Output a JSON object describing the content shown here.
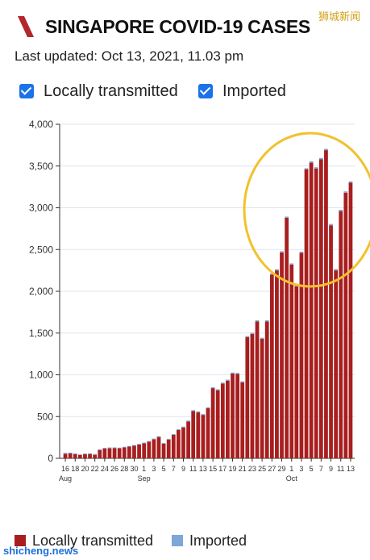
{
  "header": {
    "title": "SINGAPORE COVID-19 CASES",
    "watermark": "狮城新闻"
  },
  "updated_text": "Last updated: Oct 13, 2021, 11.03 pm",
  "filters": [
    {
      "label": "Locally transmitted",
      "checked": true
    },
    {
      "label": "Imported",
      "checked": true
    }
  ],
  "legend": [
    {
      "label": "Locally transmitted",
      "color": "#a81e1e"
    },
    {
      "label": "Imported",
      "color": "#7ea6d8"
    }
  ],
  "footer_watermark": "shicheng.news",
  "colors": {
    "local": "#a81e1e",
    "imported": "#7ea6d8",
    "highlight_circle": "#f2c12e",
    "logo": "#b3262d"
  },
  "chart_data": {
    "type": "bar",
    "stacked": true,
    "ylim": [
      0,
      4000
    ],
    "yticks": [
      0,
      500,
      1000,
      1500,
      2000,
      2500,
      3000,
      3500,
      4000
    ],
    "ytick_labels": [
      "0",
      "500",
      "1,000",
      "1,500",
      "2,000",
      "2,500",
      "3,000",
      "3,500",
      "4,000"
    ],
    "x_tick_labels": [
      "16",
      "18",
      "20",
      "22",
      "24",
      "26",
      "28",
      "30",
      "1",
      "3",
      "5",
      "7",
      "9",
      "11",
      "13",
      "15",
      "17",
      "19",
      "21",
      "23",
      "25",
      "27",
      "29",
      "1",
      "3",
      "5",
      "7",
      "9",
      "11",
      "13"
    ],
    "month_labels": [
      {
        "label": "Aug",
        "tick": 0
      },
      {
        "label": "Sep",
        "tick": 8
      },
      {
        "label": "Oct",
        "tick": 23
      }
    ],
    "categories": [
      "Aug 16",
      "Aug 17",
      "Aug 18",
      "Aug 19",
      "Aug 20",
      "Aug 21",
      "Aug 22",
      "Aug 23",
      "Aug 24",
      "Aug 25",
      "Aug 26",
      "Aug 27",
      "Aug 28",
      "Aug 29",
      "Aug 30",
      "Aug 31",
      "Sep 1",
      "Sep 2",
      "Sep 3",
      "Sep 4",
      "Sep 5",
      "Sep 6",
      "Sep 7",
      "Sep 8",
      "Sep 9",
      "Sep 10",
      "Sep 11",
      "Sep 12",
      "Sep 13",
      "Sep 14",
      "Sep 15",
      "Sep 16",
      "Sep 17",
      "Sep 18",
      "Sep 19",
      "Sep 20",
      "Sep 21",
      "Sep 22",
      "Sep 23",
      "Sep 24",
      "Sep 25",
      "Sep 26",
      "Sep 27",
      "Sep 28",
      "Sep 29",
      "Sep 30",
      "Oct 1",
      "Oct 2",
      "Oct 3",
      "Oct 4",
      "Oct 5",
      "Oct 6",
      "Oct 7",
      "Oct 8",
      "Oct 9",
      "Oct 10",
      "Oct 11",
      "Oct 12",
      "Oct 13"
    ],
    "series": [
      {
        "name": "Locally transmitted",
        "values": [
          55,
          60,
          50,
          40,
          48,
          52,
          42,
          100,
          118,
          120,
          123,
          120,
          130,
          140,
          150,
          165,
          180,
          200,
          228,
          255,
          175,
          225,
          280,
          340,
          370,
          440,
          565,
          550,
          520,
          600,
          840,
          815,
          895,
          930,
          1015,
          1010,
          910,
          1450,
          1490,
          1640,
          1430,
          1640,
          2200,
          2250,
          2465,
          2880,
          2320,
          2060,
          2460,
          3460,
          3540,
          3470,
          3580,
          3690,
          2790,
          2250,
          2960,
          3180,
          3300
        ]
      },
      {
        "name": "Imported",
        "values": [
          10,
          8,
          10,
          8,
          10,
          8,
          10,
          8,
          8,
          10,
          8,
          8,
          8,
          8,
          10,
          8,
          8,
          8,
          8,
          10,
          8,
          8,
          10,
          10,
          10,
          12,
          12,
          12,
          10,
          12,
          12,
          12,
          12,
          12,
          12,
          12,
          12,
          14,
          14,
          14,
          14,
          14,
          14,
          14,
          14,
          14,
          14,
          14,
          14,
          14,
          16,
          16,
          16,
          16,
          16,
          16,
          16,
          16,
          16
        ]
      }
    ],
    "annotations": [
      {
        "type": "circle",
        "around": "Oct 1 - Oct 13"
      }
    ]
  }
}
